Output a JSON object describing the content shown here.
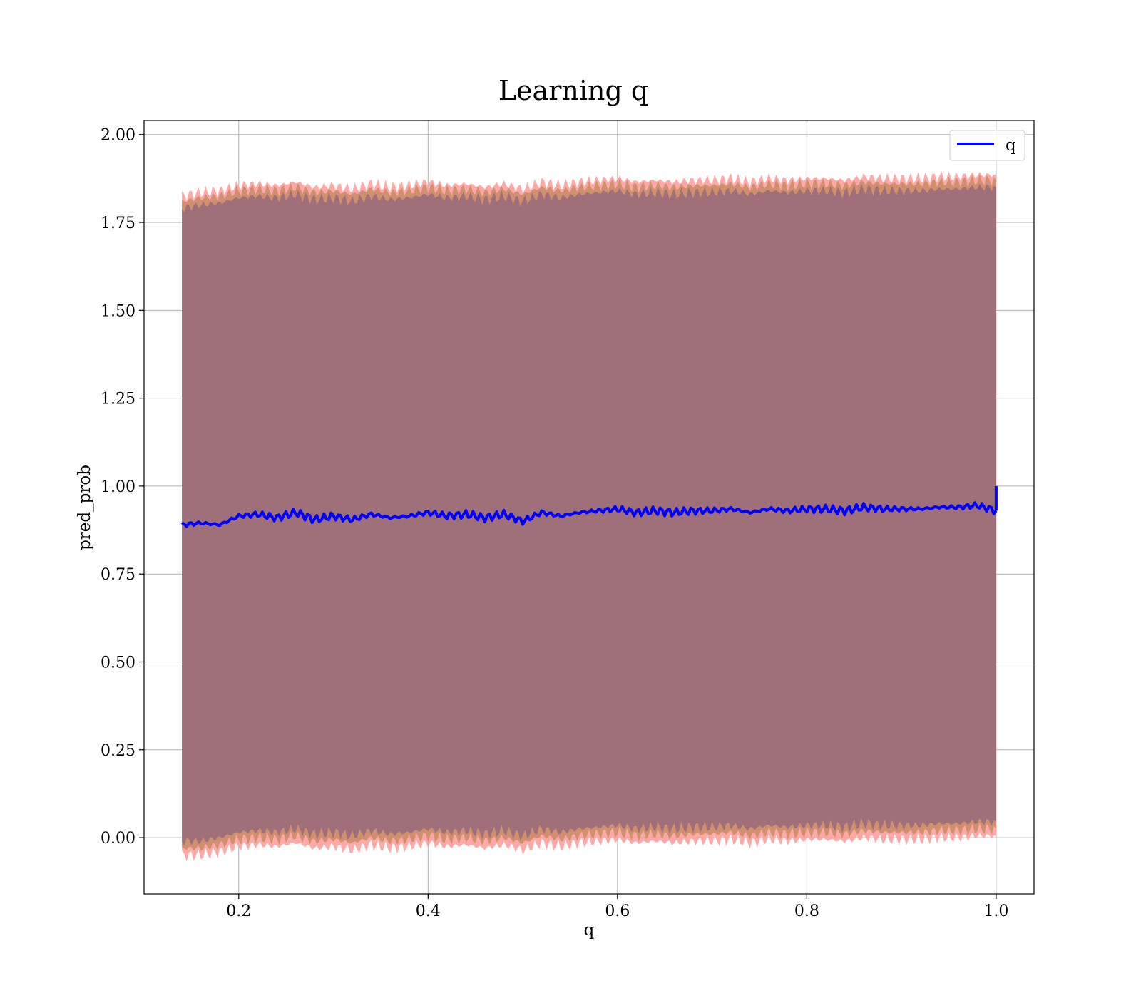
{
  "chart_data": {
    "type": "line",
    "title": "Learning q",
    "xlabel": "q",
    "ylabel": "pred_prob",
    "xlim": [
      0.1,
      1.04
    ],
    "ylim": [
      -0.16,
      2.04
    ],
    "xticks": [
      0.2,
      0.4,
      0.6,
      0.8,
      1.0
    ],
    "xtick_labels": [
      "0.2",
      "0.4",
      "0.6",
      "0.8",
      "1.0"
    ],
    "yticks": [
      0.0,
      0.25,
      0.5,
      0.75,
      1.0,
      1.25,
      1.5,
      1.75,
      2.0
    ],
    "ytick_labels": [
      "0.00",
      "0.25",
      "0.50",
      "0.75",
      "1.00",
      "1.25",
      "1.50",
      "1.75",
      "2.00"
    ],
    "grid": true,
    "legend_position": "top-right",
    "series": [
      {
        "name": "q",
        "color": "#0000ff",
        "x": [
          0.14,
          0.16,
          0.18,
          0.2,
          0.22,
          0.24,
          0.26,
          0.28,
          0.3,
          0.32,
          0.34,
          0.36,
          0.38,
          0.4,
          0.42,
          0.44,
          0.46,
          0.48,
          0.5,
          0.52,
          0.54,
          0.56,
          0.58,
          0.6,
          0.62,
          0.64,
          0.66,
          0.68,
          0.7,
          0.72,
          0.74,
          0.76,
          0.78,
          0.8,
          0.82,
          0.84,
          0.86,
          0.88,
          0.9,
          0.92,
          0.94,
          0.96,
          0.98,
          1.0
        ],
        "y": [
          0.89,
          0.895,
          0.89,
          0.915,
          0.92,
          0.91,
          0.925,
          0.905,
          0.915,
          0.905,
          0.92,
          0.91,
          0.915,
          0.925,
          0.915,
          0.92,
          0.91,
          0.92,
          0.9,
          0.925,
          0.915,
          0.925,
          0.93,
          0.935,
          0.925,
          0.93,
          0.925,
          0.93,
          0.93,
          0.935,
          0.925,
          0.935,
          0.93,
          0.935,
          0.935,
          0.93,
          0.94,
          0.935,
          0.935,
          0.935,
          0.94,
          0.94,
          0.945,
          0.93
        ],
        "end_jump": [
          0.93,
          1.0
        ]
      }
    ],
    "bands": [
      {
        "label": "",
        "color": "#ff9999",
        "upper": [
          1.825,
          1.835,
          1.84,
          1.855,
          1.86,
          1.855,
          1.865,
          1.85,
          1.855,
          1.845,
          1.86,
          1.85,
          1.855,
          1.865,
          1.855,
          1.86,
          1.85,
          1.86,
          1.845,
          1.865,
          1.855,
          1.865,
          1.87,
          1.875,
          1.865,
          1.87,
          1.865,
          1.87,
          1.87,
          1.875,
          1.865,
          1.875,
          1.87,
          1.875,
          1.875,
          1.87,
          1.88,
          1.875,
          1.875,
          1.875,
          1.88,
          1.88,
          1.885,
          1.885
        ],
        "lower": [
          -0.05,
          -0.05,
          -0.04,
          -0.025,
          -0.02,
          -0.025,
          -0.015,
          -0.03,
          -0.025,
          -0.035,
          -0.02,
          -0.03,
          -0.025,
          -0.015,
          -0.025,
          -0.02,
          -0.03,
          -0.02,
          -0.035,
          -0.015,
          -0.025,
          -0.015,
          -0.01,
          -0.005,
          -0.015,
          -0.01,
          -0.015,
          -0.01,
          -0.01,
          -0.005,
          -0.015,
          -0.005,
          -0.01,
          -0.005,
          -0.005,
          -0.01,
          0.0,
          -0.005,
          -0.005,
          -0.005,
          0.0,
          0.0,
          0.005,
          0.005
        ]
      },
      {
        "label": "",
        "color": "#c88c64",
        "upper": [
          1.81,
          1.82,
          1.825,
          1.84,
          1.845,
          1.84,
          1.85,
          1.835,
          1.84,
          1.83,
          1.845,
          1.835,
          1.84,
          1.85,
          1.84,
          1.845,
          1.835,
          1.845,
          1.83,
          1.85,
          1.84,
          1.85,
          1.855,
          1.86,
          1.85,
          1.855,
          1.85,
          1.855,
          1.855,
          1.86,
          1.85,
          1.86,
          1.855,
          1.86,
          1.86,
          1.855,
          1.865,
          1.86,
          1.86,
          1.86,
          1.865,
          1.865,
          1.87,
          1.87
        ],
        "lower": [
          -0.03,
          -0.03,
          -0.02,
          -0.005,
          0.0,
          -0.005,
          0.005,
          -0.01,
          -0.005,
          -0.015,
          0.0,
          -0.01,
          -0.005,
          0.005,
          -0.005,
          0.0,
          -0.01,
          0.0,
          -0.015,
          0.005,
          -0.005,
          0.005,
          0.01,
          0.015,
          0.005,
          0.01,
          0.005,
          0.01,
          0.01,
          0.015,
          0.005,
          0.015,
          0.01,
          0.015,
          0.015,
          0.01,
          0.02,
          0.015,
          0.015,
          0.015,
          0.02,
          0.02,
          0.025,
          0.025
        ]
      },
      {
        "label": "",
        "color": "#a0707a",
        "upper": [
          1.79,
          1.8,
          1.805,
          1.82,
          1.825,
          1.82,
          1.83,
          1.815,
          1.82,
          1.81,
          1.825,
          1.815,
          1.82,
          1.83,
          1.82,
          1.825,
          1.815,
          1.825,
          1.81,
          1.83,
          1.82,
          1.83,
          1.835,
          1.84,
          1.83,
          1.835,
          1.83,
          1.835,
          1.835,
          1.84,
          1.83,
          1.84,
          1.835,
          1.84,
          1.84,
          1.835,
          1.845,
          1.84,
          1.84,
          1.84,
          1.845,
          1.845,
          1.85,
          1.85
        ],
        "lower": [
          -0.01,
          -0.01,
          0.0,
          0.015,
          0.02,
          0.015,
          0.025,
          0.01,
          0.015,
          0.005,
          0.02,
          0.01,
          0.015,
          0.025,
          0.015,
          0.02,
          0.01,
          0.02,
          0.005,
          0.025,
          0.015,
          0.025,
          0.03,
          0.035,
          0.025,
          0.03,
          0.025,
          0.03,
          0.03,
          0.035,
          0.025,
          0.035,
          0.03,
          0.035,
          0.035,
          0.03,
          0.04,
          0.035,
          0.035,
          0.035,
          0.04,
          0.04,
          0.045,
          0.045
        ]
      }
    ]
  }
}
